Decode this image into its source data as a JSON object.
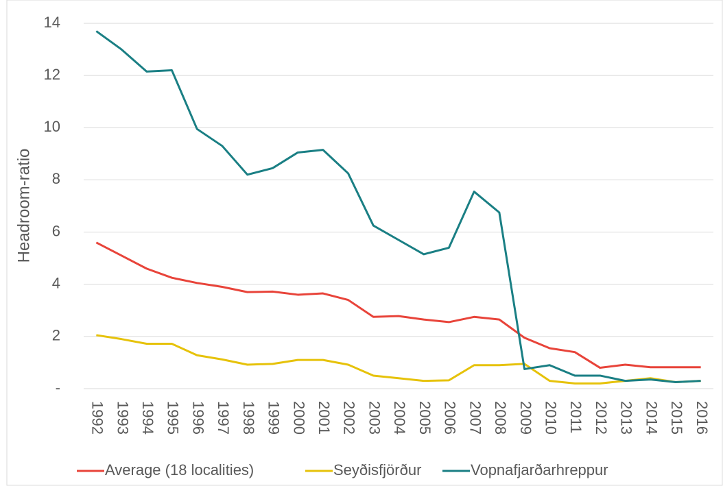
{
  "chart_data": {
    "type": "line",
    "y_label": "Headroom-ratio",
    "categories": [
      "1992",
      "1993",
      "1994",
      "1995",
      "1996",
      "1997",
      "1998",
      "1999",
      "2000",
      "2001",
      "2002",
      "2003",
      "2004",
      "2005",
      "2006",
      "2007",
      "2008",
      "2009",
      "2010",
      "2011",
      "2012",
      "2013",
      "2014",
      "2015",
      "2016"
    ],
    "series": [
      {
        "name": "Average (18 localities)",
        "color": "#e8443a",
        "values": [
          5.6,
          5.1,
          4.6,
          4.25,
          4.05,
          3.9,
          3.7,
          3.72,
          3.6,
          3.65,
          3.4,
          2.75,
          2.78,
          2.65,
          2.55,
          2.75,
          2.65,
          1.95,
          1.55,
          1.4,
          0.8,
          0.92,
          0.82,
          0.82,
          0.82
        ]
      },
      {
        "name": "Seyðisfjörður",
        "color": "#e6c20a",
        "values": [
          2.05,
          1.9,
          1.72,
          1.72,
          1.28,
          1.12,
          0.92,
          0.95,
          1.1,
          1.1,
          0.92,
          0.5,
          0.4,
          0.3,
          0.32,
          0.9,
          0.9,
          0.95,
          0.3,
          0.2,
          0.2,
          0.3,
          0.4,
          0.25,
          0.3
        ]
      },
      {
        "name": "Vopnafjarðarhreppur",
        "color": "#1a7f84",
        "values": [
          13.7,
          13.0,
          12.15,
          12.2,
          9.95,
          9.3,
          8.2,
          8.45,
          9.05,
          9.15,
          8.25,
          6.25,
          5.7,
          5.15,
          5.4,
          7.55,
          6.75,
          0.75,
          0.9,
          0.5,
          0.5,
          0.3,
          0.35,
          0.25,
          0.3
        ]
      }
    ],
    "ylim": [
      0,
      14
    ],
    "yticks": [
      {
        "value": 0,
        "label": "-"
      },
      2,
      4,
      6,
      8,
      10,
      12,
      14
    ],
    "grid": true
  }
}
